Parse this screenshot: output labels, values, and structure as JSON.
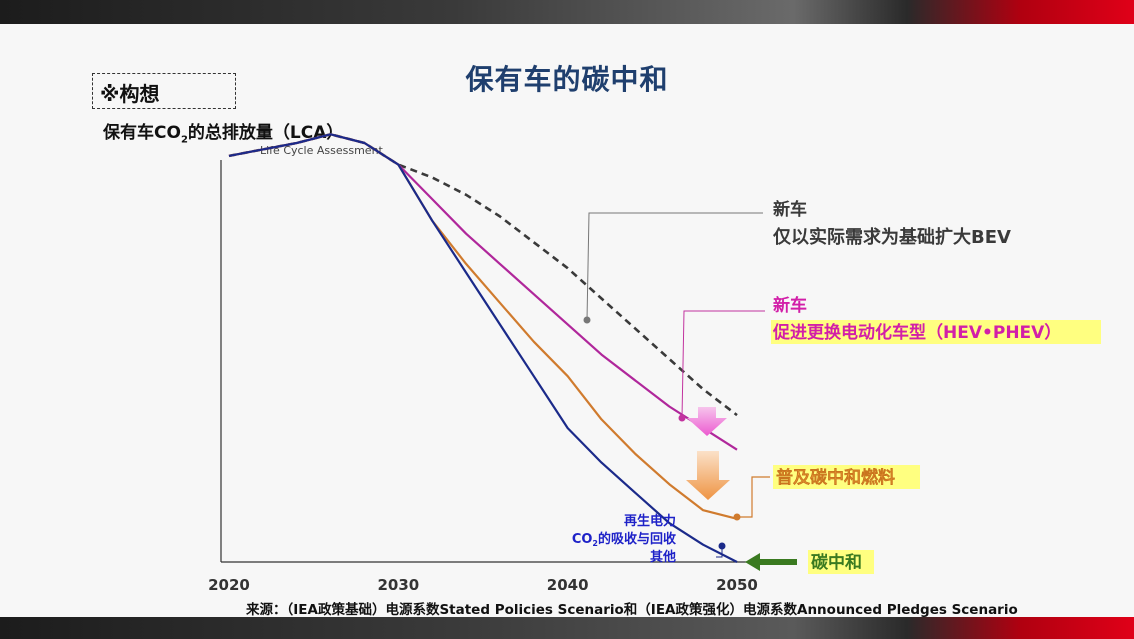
{
  "slide": {
    "title": "保有车的碳中和",
    "concept_label": "※构想",
    "ylabel_main": "保有车CO",
    "ylabel_sub": "2",
    "ylabel_rest": "的总排放量（LCA）",
    "lca_note": "Life Cycle Assessment",
    "source": "来源：（IEA政策基础）电源系数Stated Policies Scenario和（IEA政策强化）电源系数Announced Pledges Scenario"
  },
  "chart_data": {
    "type": "line",
    "x_ticks": [
      "2020",
      "2030",
      "2040",
      "2050"
    ],
    "xlim": [
      2020,
      2050
    ],
    "ylim": [
      0,
      100
    ],
    "grid": false,
    "series": [
      {
        "name": "新车 仅以实际需求为基础扩大BEV",
        "style": "dashed",
        "color": "#3a3a3a",
        "points": [
          [
            2020,
            94
          ],
          [
            2022,
            95.5
          ],
          [
            2024,
            97
          ],
          [
            2026,
            99
          ],
          [
            2028,
            97
          ],
          [
            2030,
            92
          ],
          [
            2032,
            89
          ],
          [
            2034,
            85
          ],
          [
            2036,
            80
          ],
          [
            2038,
            74
          ],
          [
            2040,
            68
          ],
          [
            2042,
            61
          ],
          [
            2044,
            54
          ],
          [
            2046,
            47
          ],
          [
            2048,
            40
          ],
          [
            2050,
            34
          ]
        ]
      },
      {
        "name": "新车 促进更换电动化车型（HEV•PHEV）",
        "style": "solid",
        "color": "#b0279b",
        "points": [
          [
            2020,
            94
          ],
          [
            2022,
            95.5
          ],
          [
            2024,
            97
          ],
          [
            2026,
            99
          ],
          [
            2028,
            97
          ],
          [
            2030,
            92
          ],
          [
            2032,
            84
          ],
          [
            2034,
            76
          ],
          [
            2036,
            69
          ],
          [
            2038,
            62
          ],
          [
            2040,
            55
          ],
          [
            2042,
            48
          ],
          [
            2044,
            42
          ],
          [
            2046,
            36
          ],
          [
            2048,
            31
          ],
          [
            2050,
            26
          ]
        ]
      },
      {
        "name": "普及碳中和燃料",
        "style": "solid",
        "color": "#d07b2e",
        "points": [
          [
            2020,
            94
          ],
          [
            2022,
            95.5
          ],
          [
            2024,
            97
          ],
          [
            2026,
            99
          ],
          [
            2028,
            97
          ],
          [
            2030,
            92
          ],
          [
            2032,
            79
          ],
          [
            2034,
            69
          ],
          [
            2036,
            60
          ],
          [
            2038,
            51
          ],
          [
            2040,
            43
          ],
          [
            2042,
            33
          ],
          [
            2044,
            25
          ],
          [
            2046,
            18
          ],
          [
            2048,
            12
          ],
          [
            2050,
            10
          ]
        ]
      },
      {
        "name": "碳中和",
        "style": "solid",
        "color": "#1b2a8a",
        "points": [
          [
            2020,
            94
          ],
          [
            2022,
            95.5
          ],
          [
            2024,
            97
          ],
          [
            2026,
            99
          ],
          [
            2028,
            97
          ],
          [
            2030,
            92
          ],
          [
            2032,
            79
          ],
          [
            2034,
            67
          ],
          [
            2036,
            55
          ],
          [
            2038,
            43
          ],
          [
            2040,
            31
          ],
          [
            2042,
            23
          ],
          [
            2044,
            16
          ],
          [
            2046,
            9
          ],
          [
            2048,
            4
          ],
          [
            2050,
            0
          ]
        ]
      }
    ],
    "annotations": {
      "dashed_line": {
        "line1": "新车",
        "line2": "仅以实际需求为基础扩大BEV",
        "color": "#3a3a3a"
      },
      "magenta_line": {
        "line1": "新车",
        "line2": "促进更换电动化车型（HEV•PHEV）",
        "color": "#d21fa8"
      },
      "orange_line": {
        "label": "普及碳中和燃料",
        "color": "#f3a63a"
      },
      "navy_line": {
        "label": "碳中和",
        "color": "#3a7a20"
      },
      "navy_note": {
        "line1": "再生电力",
        "line2a": "CO",
        "line2sub": "2",
        "line2b": "的吸收与回收",
        "line3": "其他",
        "color": "#1e22c8"
      }
    },
    "colors": {
      "highlight": "#ffff80",
      "magenta_arrow": "#ec5ad0",
      "orange_arrow": "#ee9443",
      "green_arrow": "#3a7a20"
    }
  }
}
